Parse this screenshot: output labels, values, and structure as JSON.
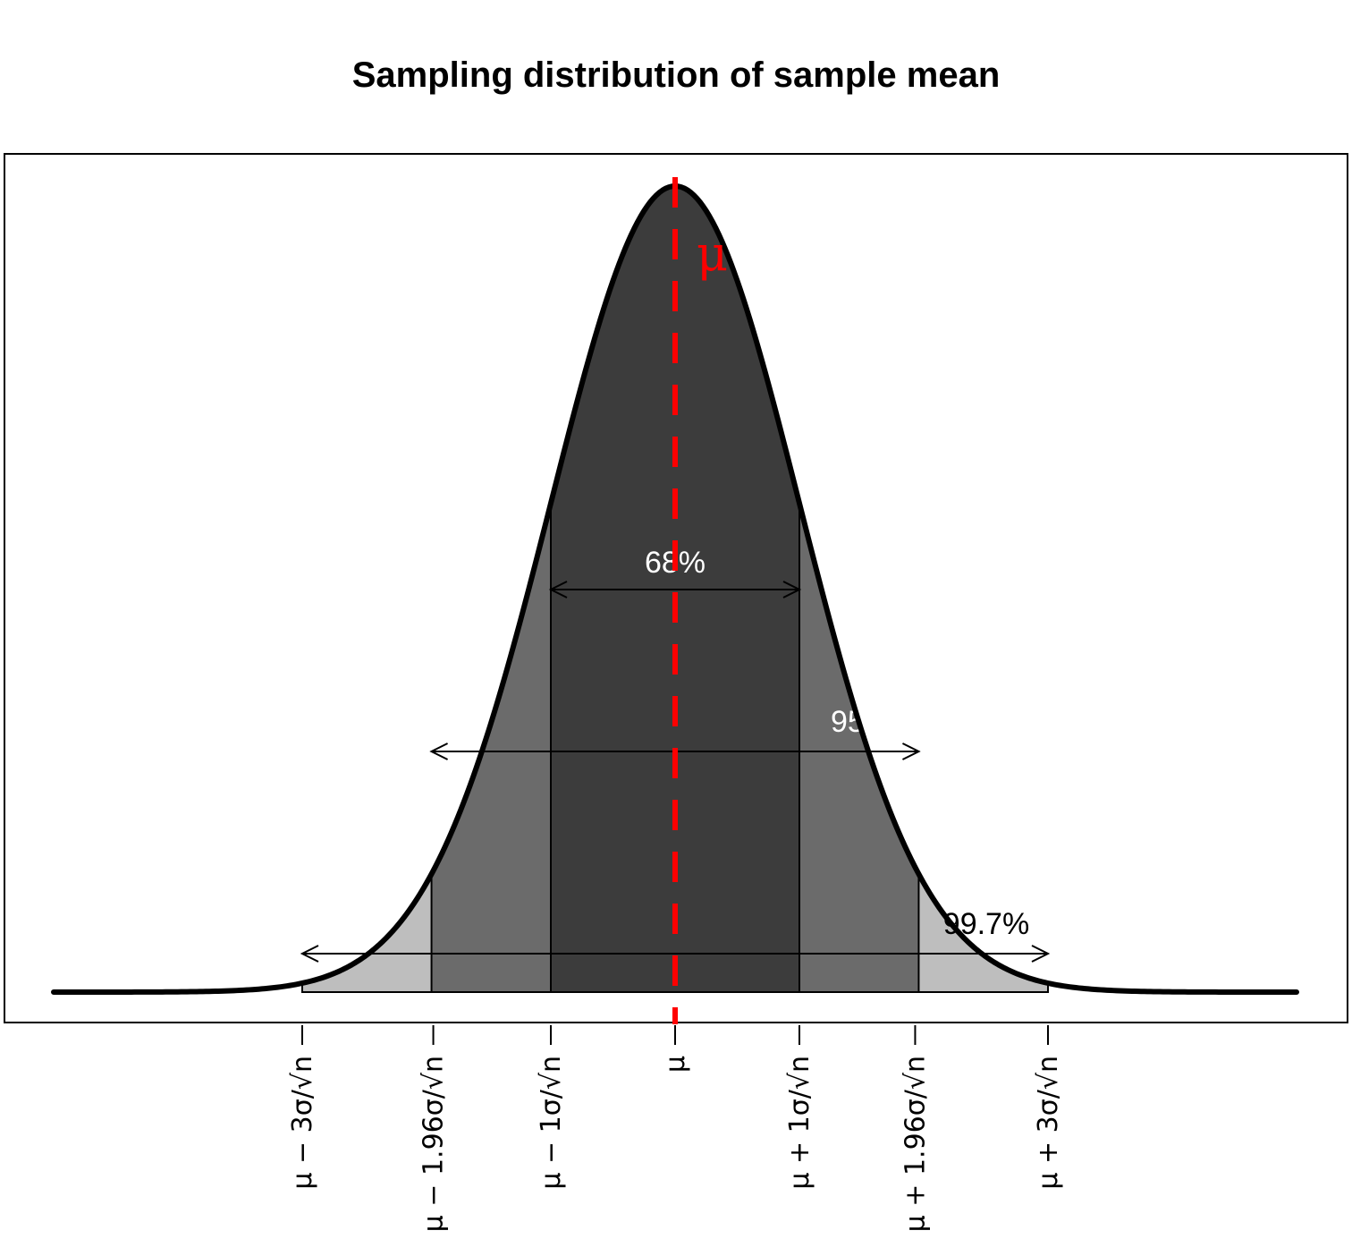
{
  "chart_data": {
    "type": "area",
    "title": "Sampling distribution of sample mean",
    "xlabel": "",
    "ylabel": "",
    "curve": "normal density",
    "xlim": [
      -5,
      5
    ],
    "mu_label": "μ",
    "bands": [
      {
        "name": "99.7%",
        "from": -3,
        "to": 3,
        "color": "#bebebe",
        "label_color": "#000000"
      },
      {
        "name": "95%",
        "from": -1.96,
        "to": 1.96,
        "color": "#6b6b6b",
        "label_color": "#ffffff"
      },
      {
        "name": "68%",
        "from": -1,
        "to": 1,
        "color": "#3c3c3c",
        "label_color": "#ffffff"
      }
    ],
    "ticks": [
      {
        "x": -3,
        "label": "μ − 3σ/√n"
      },
      {
        "x": -1.96,
        "label": "μ − 1.96σ/√n"
      },
      {
        "x": -1,
        "label": "μ − 1σ/√n"
      },
      {
        "x": 0,
        "label": "μ"
      },
      {
        "x": 1,
        "label": "μ + 1σ/√n"
      },
      {
        "x": 1.96,
        "label": "μ + 1.96σ/√n"
      },
      {
        "x": 3,
        "label": "μ + 3σ/√n"
      }
    ],
    "mean_line": {
      "x": 0,
      "color": "#ff0000",
      "style": "dashed"
    },
    "grid": false,
    "legend": "none"
  }
}
